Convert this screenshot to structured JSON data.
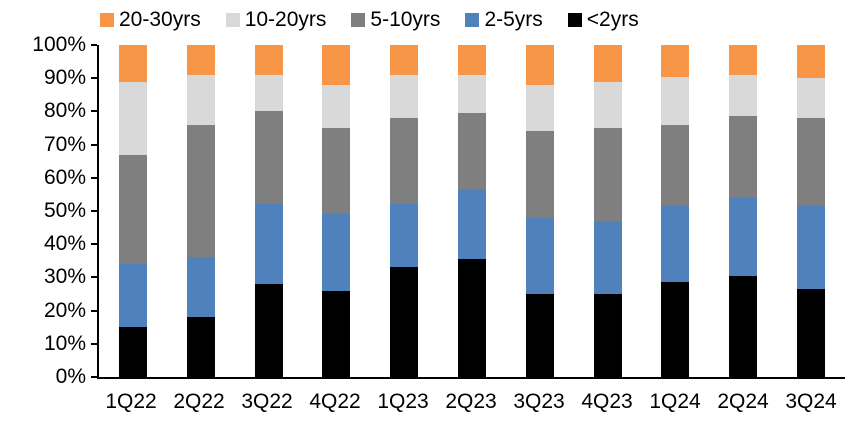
{
  "chart_data": {
    "type": "bar",
    "stacked": true,
    "percent_stacked": true,
    "title": "",
    "xlabel": "",
    "ylabel": "",
    "ylim": [
      0,
      100
    ],
    "grid": false,
    "legend_position": "top",
    "legend_order": [
      "20-30yrs",
      "10-20yrs",
      "5-10yrs",
      "2-5yrs",
      "<2yrs"
    ],
    "y_ticks": [
      "0%",
      "10%",
      "20%",
      "30%",
      "40%",
      "50%",
      "60%",
      "70%",
      "80%",
      "90%",
      "100%"
    ],
    "categories": [
      "1Q22",
      "2Q22",
      "3Q22",
      "4Q22",
      "1Q23",
      "2Q23",
      "3Q23",
      "4Q23",
      "1Q24",
      "2Q24",
      "3Q24"
    ],
    "series": [
      {
        "name": "<2yrs",
        "color": "#000000",
        "values": [
          15,
          18,
          28,
          26,
          33,
          35.5,
          25,
          25,
          28.5,
          30.5,
          26.5
        ]
      },
      {
        "name": "2-5yrs",
        "color": "#4F81BD",
        "values": [
          19,
          18,
          24,
          23,
          19,
          21,
          23,
          22,
          23,
          23.5,
          25
        ]
      },
      {
        "name": "5-10yrs",
        "color": "#7F7F7F",
        "values": [
          33,
          40,
          28,
          26,
          26,
          23,
          26,
          28,
          24.5,
          24.5,
          26.5
        ]
      },
      {
        "name": "10-20yrs",
        "color": "#D9D9D9",
        "values": [
          22,
          15,
          11,
          13,
          13,
          11.5,
          14,
          14,
          14.5,
          12.5,
          12
        ]
      },
      {
        "name": "20-30yrs",
        "color": "#F79646",
        "values": [
          11,
          9,
          9,
          12,
          9,
          9,
          12,
          11,
          9.5,
          9,
          10
        ]
      }
    ],
    "colors": {
      "axis": "#000000",
      "text": "#000000",
      "background": "#FFFFFF"
    }
  }
}
